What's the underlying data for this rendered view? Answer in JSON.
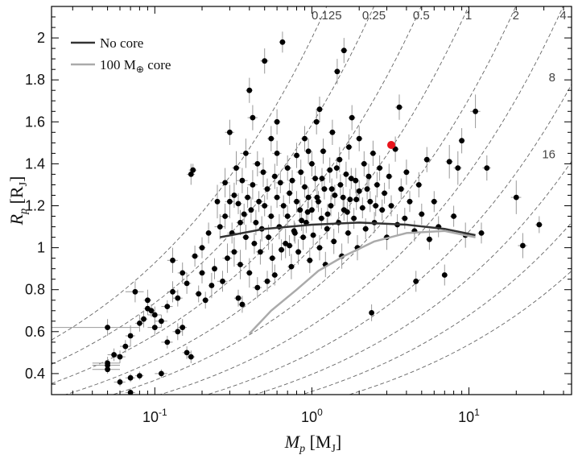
{
  "chart_data": {
    "type": "scatter",
    "title": "",
    "xlabel": {
      "symbol": "M",
      "sub": "p",
      "unit": "M",
      "unit_sub": "J"
    },
    "ylabel": {
      "symbol": "R",
      "sub": "p",
      "unit": "R",
      "unit_sub": "J"
    },
    "x_scale": "log",
    "xlim": [
      0.022,
      45
    ],
    "ylim": [
      0.3,
      2.15
    ],
    "x_ticks": [
      {
        "value": 0.1,
        "label": "10",
        "exp": "-1"
      },
      {
        "value": 1,
        "label": "10",
        "exp": "0"
      },
      {
        "value": 10,
        "label": "10",
        "exp": "1"
      }
    ],
    "y_ticks": [
      {
        "value": 0.4,
        "label": "0.4"
      },
      {
        "value": 0.6,
        "label": "0.6"
      },
      {
        "value": 0.8,
        "label": "0.8"
      },
      {
        "value": 1.0,
        "label": "1"
      },
      {
        "value": 1.2,
        "label": "1.2"
      },
      {
        "value": 1.4,
        "label": "1.4"
      },
      {
        "value": 1.6,
        "label": "1.6"
      },
      {
        "value": 1.8,
        "label": "1.8"
      },
      {
        "value": 2.0,
        "label": "2"
      }
    ],
    "grid": false,
    "legend_position": "top-left",
    "legend": [
      {
        "label_main": "No core",
        "color": "#333333"
      },
      {
        "label_main": "100 M",
        "label_sub": "⊕",
        "label_tail": " core",
        "color": "#aaaaaa"
      }
    ],
    "density_lines": [
      {
        "label": "0.125",
        "rho": 0.125
      },
      {
        "label": "0.25",
        "rho": 0.25
      },
      {
        "label": "0.5",
        "rho": 0.5
      },
      {
        "label": "1",
        "rho": 1
      },
      {
        "label": "2",
        "rho": 2
      },
      {
        "label": "4",
        "rho": 4
      },
      {
        "label": "8",
        "rho": 8
      },
      {
        "label": "16",
        "rho": 16
      },
      {
        "label": "",
        "rho": 32
      },
      {
        "label": "",
        "rho": 64
      }
    ],
    "model_curves": [
      {
        "name": "No core",
        "color": "#333333",
        "points": [
          [
            0.26,
            1.05
          ],
          [
            0.5,
            1.09
          ],
          [
            1.0,
            1.11
          ],
          [
            2.0,
            1.12
          ],
          [
            4.0,
            1.11
          ],
          [
            7.0,
            1.09
          ],
          [
            11.0,
            1.06
          ]
        ]
      },
      {
        "name": "100 M⊕ core",
        "color": "#aaaaaa",
        "points": [
          [
            0.4,
            0.59
          ],
          [
            0.55,
            0.7
          ],
          [
            0.8,
            0.8
          ],
          [
            1.1,
            0.89
          ],
          [
            1.6,
            0.96
          ],
          [
            2.5,
            1.03
          ],
          [
            4.0,
            1.07
          ],
          [
            7.0,
            1.08
          ],
          [
            11.0,
            1.05
          ]
        ]
      }
    ],
    "highlight_point": {
      "x": 3.2,
      "y": 1.49,
      "color": "#e8141c"
    },
    "point_color": "#000000",
    "error_color": "#999999",
    "points": [
      [
        0.05,
        0.62,
        0.03,
        0.04
      ],
      [
        0.05,
        0.44,
        0.01,
        0.02
      ],
      [
        0.05,
        0.42,
        0.01,
        0.02
      ],
      [
        0.05,
        0.45,
        0.01,
        0.03
      ],
      [
        0.055,
        0.49,
        0.005,
        0.03
      ],
      [
        0.06,
        0.48,
        0.005,
        0.03
      ],
      [
        0.06,
        0.36,
        0.005,
        0.02
      ],
      [
        0.065,
        0.53,
        0.005,
        0.03
      ],
      [
        0.07,
        0.31,
        0.005,
        0.02
      ],
      [
        0.07,
        0.58,
        0.005,
        0.05
      ],
      [
        0.07,
        0.38,
        0.005,
        0.02
      ],
      [
        0.075,
        0.79,
        0.01,
        0.05
      ],
      [
        0.08,
        0.39,
        0.005,
        0.02
      ],
      [
        0.08,
        0.64,
        0.005,
        0.04
      ],
      [
        0.085,
        0.66,
        0.005,
        0.04
      ],
      [
        0.09,
        0.75,
        0.005,
        0.05
      ],
      [
        0.09,
        0.71,
        0.005,
        0.03
      ],
      [
        0.095,
        0.7,
        0.005,
        0.03
      ],
      [
        0.1,
        0.68,
        0.01,
        0.04
      ],
      [
        0.1,
        0.62,
        0.01,
        0.04
      ],
      [
        0.11,
        0.4,
        0.01,
        0.02
      ],
      [
        0.11,
        0.65,
        0.01,
        0.03
      ],
      [
        0.12,
        0.72,
        0.01,
        0.03
      ],
      [
        0.12,
        0.55,
        0.01,
        0.03
      ],
      [
        0.13,
        0.94,
        0.01,
        0.06
      ],
      [
        0.13,
        0.79,
        0.01,
        0.05
      ],
      [
        0.14,
        0.6,
        0.01,
        0.04
      ],
      [
        0.14,
        0.76,
        0.01,
        0.04
      ],
      [
        0.15,
        0.88,
        0.01,
        0.05
      ],
      [
        0.15,
        0.62,
        0.01,
        0.04
      ],
      [
        0.16,
        0.5,
        0.01,
        0.03
      ],
      [
        0.16,
        0.83,
        0.01,
        0.05
      ],
      [
        0.17,
        1.35,
        0.01,
        0.05
      ],
      [
        0.17,
        0.48,
        0.01,
        0.03
      ],
      [
        0.175,
        1.37,
        0.01,
        0.03
      ],
      [
        0.18,
        0.96,
        0.01,
        0.05
      ],
      [
        0.19,
        0.78,
        0.01,
        0.04
      ],
      [
        0.2,
        0.88,
        0.01,
        0.05
      ],
      [
        0.2,
        1.0,
        0.01,
        0.05
      ],
      [
        0.21,
        0.75,
        0.01,
        0.04
      ],
      [
        0.22,
        1.07,
        0.01,
        0.05
      ],
      [
        0.23,
        0.82,
        0.01,
        0.06
      ],
      [
        0.24,
        0.9,
        0.01,
        0.05
      ],
      [
        0.25,
        1.22,
        0.01,
        0.08
      ],
      [
        0.26,
        1.1,
        0.02,
        0.06
      ],
      [
        0.27,
        0.84,
        0.02,
        0.05
      ],
      [
        0.28,
        1.15,
        0.02,
        0.06
      ],
      [
        0.28,
        1.31,
        0.02,
        0.07
      ],
      [
        0.29,
        0.95,
        0.02,
        0.07
      ],
      [
        0.3,
        1.22,
        0.02,
        0.08
      ],
      [
        0.3,
        1.55,
        0.02,
        0.06
      ],
      [
        0.31,
        1.07,
        0.02,
        0.05
      ],
      [
        0.32,
        0.98,
        0.02,
        0.07
      ],
      [
        0.32,
        1.25,
        0.02,
        0.06
      ],
      [
        0.33,
        1.38,
        0.02,
        0.08
      ],
      [
        0.34,
        1.21,
        0.02,
        0.05
      ],
      [
        0.34,
        0.76,
        0.02,
        0.04
      ],
      [
        0.35,
        1.12,
        0.02,
        0.06
      ],
      [
        0.35,
        0.92,
        0.02,
        0.07
      ],
      [
        0.36,
        1.32,
        0.03,
        0.06
      ],
      [
        0.37,
        1.16,
        0.02,
        0.05
      ],
      [
        0.38,
        1.05,
        0.02,
        0.06
      ],
      [
        0.38,
        1.45,
        0.03,
        0.07
      ],
      [
        0.39,
        1.24,
        0.02,
        0.05
      ],
      [
        0.4,
        0.88,
        0.02,
        0.07
      ],
      [
        0.4,
        1.75,
        0.02,
        0.06
      ],
      [
        0.41,
        1.18,
        0.02,
        0.06
      ],
      [
        0.42,
        1.3,
        0.03,
        0.07
      ],
      [
        0.43,
        1.02,
        0.02,
        0.05
      ],
      [
        0.44,
        1.12,
        0.02,
        0.06
      ],
      [
        0.45,
        1.4,
        0.03,
        0.06
      ],
      [
        0.46,
        1.22,
        0.03,
        0.05
      ],
      [
        0.47,
        0.98,
        0.03,
        0.06
      ],
      [
        0.48,
        1.09,
        0.03,
        0.06
      ],
      [
        0.49,
        1.36,
        0.03,
        0.07
      ],
      [
        0.5,
        1.2,
        0.03,
        0.05
      ],
      [
        0.5,
        1.89,
        0.03,
        0.06
      ],
      [
        0.52,
        1.28,
        0.03,
        0.05
      ],
      [
        0.53,
        1.05,
        0.03,
        0.06
      ],
      [
        0.55,
        1.15,
        0.03,
        0.05
      ],
      [
        0.55,
        1.52,
        0.03,
        0.06
      ],
      [
        0.56,
        0.95,
        0.03,
        0.07
      ],
      [
        0.58,
        1.34,
        0.03,
        0.06
      ],
      [
        0.6,
        1.24,
        0.03,
        0.05
      ],
      [
        0.6,
        1.45,
        0.04,
        0.06
      ],
      [
        0.62,
        1.1,
        0.03,
        0.06
      ],
      [
        0.63,
        1.31,
        0.04,
        0.05
      ],
      [
        0.65,
        1.98,
        0.03,
        0.05
      ],
      [
        0.66,
        1.2,
        0.04,
        0.05
      ],
      [
        0.68,
        1.02,
        0.04,
        0.07
      ],
      [
        0.7,
        1.38,
        0.04,
        0.06
      ],
      [
        0.7,
        1.15,
        0.04,
        0.05
      ],
      [
        0.72,
        1.26,
        0.04,
        0.05
      ],
      [
        0.74,
        0.91,
        0.04,
        0.06
      ],
      [
        0.75,
        1.32,
        0.04,
        0.05
      ],
      [
        0.77,
        1.08,
        0.04,
        0.05
      ],
      [
        0.8,
        1.44,
        0.04,
        0.06
      ],
      [
        0.8,
        1.22,
        0.04,
        0.05
      ],
      [
        0.82,
        0.98,
        0.04,
        0.06
      ],
      [
        0.84,
        1.18,
        0.04,
        0.05
      ],
      [
        0.85,
        1.36,
        0.05,
        0.06
      ],
      [
        0.88,
        1.05,
        0.05,
        0.06
      ],
      [
        0.9,
        1.29,
        0.05,
        0.05
      ],
      [
        0.9,
        1.52,
        0.05,
        0.06
      ],
      [
        0.92,
        1.12,
        0.05,
        0.05
      ],
      [
        0.95,
        1.24,
        0.05,
        0.05
      ],
      [
        0.97,
        0.94,
        0.05,
        0.06
      ],
      [
        1.0,
        1.4,
        0.05,
        0.06
      ],
      [
        1.0,
        1.18,
        0.05,
        0.05
      ],
      [
        1.02,
        1.06,
        0.05,
        0.05
      ],
      [
        1.05,
        1.33,
        0.06,
        0.06
      ],
      [
        1.07,
        1.6,
        0.06,
        0.06
      ],
      [
        1.1,
        1.22,
        0.06,
        0.05
      ],
      [
        1.12,
        1.0,
        0.06,
        0.06
      ],
      [
        1.15,
        1.14,
        0.06,
        0.05
      ],
      [
        1.18,
        1.46,
        0.06,
        0.06
      ],
      [
        1.2,
        1.28,
        0.06,
        0.05
      ],
      [
        1.22,
        0.92,
        0.06,
        0.06
      ],
      [
        1.25,
        1.09,
        0.06,
        0.05
      ],
      [
        1.3,
        1.37,
        0.07,
        0.06
      ],
      [
        1.32,
        1.2,
        0.07,
        0.05
      ],
      [
        1.35,
        1.55,
        0.07,
        0.06
      ],
      [
        1.38,
        1.03,
        0.07,
        0.06
      ],
      [
        1.4,
        1.25,
        0.07,
        0.05
      ],
      [
        1.45,
        1.84,
        0.07,
        0.06
      ],
      [
        1.48,
        1.12,
        0.07,
        0.05
      ],
      [
        1.5,
        1.42,
        0.08,
        0.06
      ],
      [
        1.52,
        1.3,
        0.08,
        0.05
      ],
      [
        1.55,
        0.96,
        0.08,
        0.06
      ],
      [
        1.6,
        1.18,
        0.08,
        0.05
      ],
      [
        1.6,
        1.94,
        0.08,
        0.06
      ],
      [
        1.65,
        1.35,
        0.08,
        0.06
      ],
      [
        1.7,
        1.07,
        0.09,
        0.05
      ],
      [
        1.72,
        1.48,
        0.09,
        0.06
      ],
      [
        1.75,
        1.23,
        0.09,
        0.05
      ],
      [
        1.8,
        1.62,
        0.09,
        0.06
      ],
      [
        1.85,
        1.14,
        0.09,
        0.05
      ],
      [
        1.9,
        1.32,
        0.1,
        0.06
      ],
      [
        1.95,
        1.0,
        0.1,
        0.06
      ],
      [
        2.0,
        1.27,
        0.1,
        0.05
      ],
      [
        2.0,
        1.52,
        0.1,
        0.06
      ],
      [
        2.1,
        1.19,
        0.1,
        0.05
      ],
      [
        2.15,
        1.4,
        0.11,
        0.06
      ],
      [
        2.2,
        1.09,
        0.11,
        0.05
      ],
      [
        2.3,
        1.34,
        0.12,
        0.06
      ],
      [
        2.35,
        1.22,
        0.12,
        0.05
      ],
      [
        2.4,
        0.69,
        0.05,
        0.04
      ],
      [
        2.45,
        1.45,
        0.12,
        0.06
      ],
      [
        2.5,
        1.12,
        0.13,
        0.05
      ],
      [
        2.6,
        1.3,
        0.13,
        0.06
      ],
      [
        2.7,
        1.38,
        0.14,
        0.06
      ],
      [
        2.8,
        1.18,
        0.14,
        0.05
      ],
      [
        2.9,
        1.26,
        0.15,
        0.05
      ],
      [
        3.0,
        1.05,
        0.15,
        0.06
      ],
      [
        3.1,
        1.34,
        0.16,
        0.06
      ],
      [
        3.2,
        1.2,
        0.16,
        0.05
      ],
      [
        3.4,
        1.47,
        0.17,
        0.06
      ],
      [
        3.5,
        1.11,
        0.18,
        0.05
      ],
      [
        3.6,
        1.67,
        0.2,
        0.06
      ],
      [
        3.7,
        1.28,
        0.19,
        0.05
      ],
      [
        3.9,
        1.14,
        0.2,
        0.05
      ],
      [
        4.0,
        1.36,
        0.2,
        0.06
      ],
      [
        4.2,
        1.22,
        0.21,
        0.05
      ],
      [
        4.5,
        1.08,
        0.23,
        0.05
      ],
      [
        4.6,
        0.84,
        0.2,
        0.05
      ],
      [
        4.8,
        1.3,
        0.24,
        0.06
      ],
      [
        5.0,
        1.16,
        0.25,
        0.05
      ],
      [
        5.4,
        1.42,
        0.27,
        0.06
      ],
      [
        5.6,
        1.04,
        0.28,
        0.05
      ],
      [
        6.0,
        1.22,
        0.3,
        0.05
      ],
      [
        6.4,
        1.1,
        0.32,
        0.05
      ],
      [
        7.0,
        0.87,
        0.3,
        0.05
      ],
      [
        7.5,
        1.41,
        0.4,
        0.08
      ],
      [
        8.0,
        1.15,
        0.4,
        0.05
      ],
      [
        8.5,
        1.38,
        0.5,
        0.08
      ],
      [
        9.0,
        1.51,
        0.4,
        0.06
      ],
      [
        9.5,
        1.06,
        0.5,
        0.06
      ],
      [
        11.0,
        1.65,
        0.8,
        0.08
      ],
      [
        12.0,
        1.07,
        0.6,
        0.05
      ],
      [
        13.0,
        1.38,
        0.8,
        0.06
      ],
      [
        20.0,
        1.24,
        1.5,
        0.08
      ],
      [
        22.0,
        1.01,
        1.5,
        0.06
      ],
      [
        28.0,
        1.11,
        1.5,
        0.04
      ],
      [
        0.36,
        0.73,
        0.02,
        0.04
      ],
      [
        0.45,
        0.81,
        0.03,
        0.05
      ],
      [
        0.52,
        0.84,
        0.03,
        0.05
      ],
      [
        0.58,
        0.87,
        0.03,
        0.05
      ],
      [
        0.64,
        0.99,
        0.03,
        0.05
      ],
      [
        0.72,
        1.01,
        0.04,
        0.05
      ],
      [
        0.78,
        1.07,
        0.04,
        0.05
      ],
      [
        0.86,
        1.13,
        0.05,
        0.05
      ],
      [
        0.94,
        1.17,
        0.05,
        0.05
      ],
      [
        1.08,
        1.24,
        0.06,
        0.05
      ],
      [
        1.16,
        1.33,
        0.06,
        0.05
      ],
      [
        1.26,
        1.16,
        0.06,
        0.05
      ],
      [
        1.34,
        1.28,
        0.07,
        0.05
      ],
      [
        1.44,
        1.38,
        0.07,
        0.05
      ],
      [
        1.58,
        1.24,
        0.08,
        0.05
      ],
      [
        1.68,
        1.17,
        0.08,
        0.05
      ],
      [
        1.78,
        1.33,
        0.09,
        0.05
      ],
      [
        1.92,
        1.23,
        0.1,
        0.05
      ],
      [
        2.25,
        1.28,
        0.11,
        0.05
      ],
      [
        2.55,
        1.2,
        0.13,
        0.05
      ],
      [
        0.95,
        1.46,
        0.05,
        0.06
      ],
      [
        1.12,
        1.66,
        0.06,
        0.06
      ],
      [
        0.6,
        1.6,
        0.03,
        0.06
      ],
      [
        0.42,
        1.62,
        0.03,
        0.06
      ]
    ]
  }
}
